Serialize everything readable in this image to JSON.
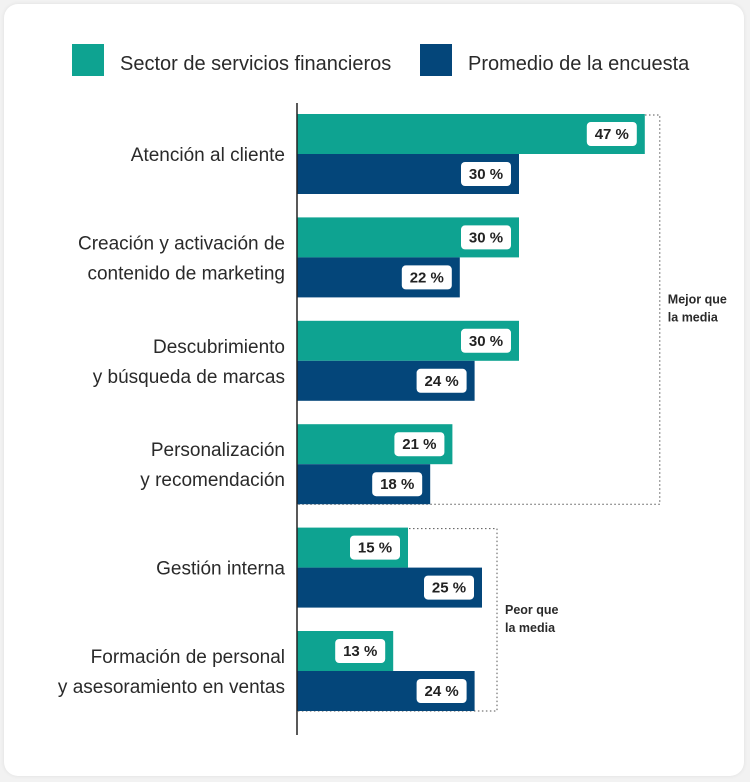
{
  "chart_data": {
    "type": "bar",
    "orientation": "horizontal",
    "categories": [
      [
        "Atención al cliente"
      ],
      [
        "Creación y activación de",
        "contenido de marketing"
      ],
      [
        "Descubrimiento",
        "y búsqueda de marcas"
      ],
      [
        "Personalización",
        "y recomendación"
      ],
      [
        "Gestión interna"
      ],
      [
        "Formación de personal",
        "y asesoramiento en ventas"
      ]
    ],
    "series": [
      {
        "name": "Sector de servicios financieros",
        "color": "#0ea391",
        "values": [
          47,
          30,
          30,
          21,
          15,
          13
        ]
      },
      {
        "name": "Promedio de la encuesta",
        "color": "#04467a",
        "values": [
          30,
          22,
          24,
          18,
          25,
          24
        ]
      }
    ],
    "value_suffix": " %",
    "xlim": [
      0,
      50
    ],
    "legend_position": "top",
    "groups": [
      {
        "label": [
          "Mejor que",
          "la media"
        ],
        "first": 0,
        "last": 3
      },
      {
        "label": [
          "Peor que",
          "la media"
        ],
        "first": 4,
        "last": 5
      }
    ]
  }
}
